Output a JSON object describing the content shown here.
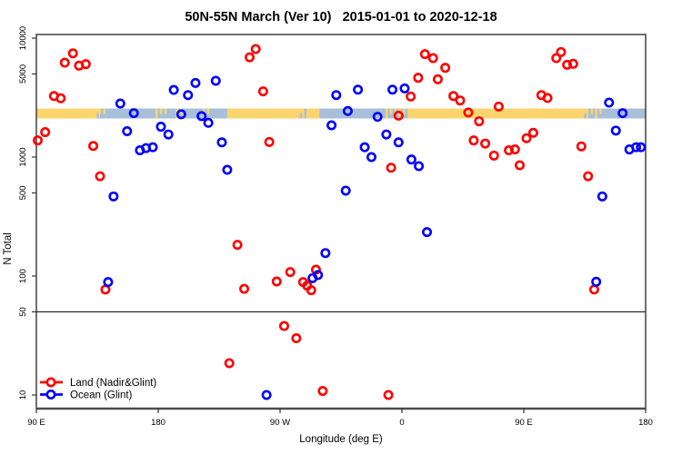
{
  "chart_data": {
    "type": "scatter",
    "title": "50N-55N March (Ver 10)   2015-01-01 to 2020-12-18",
    "xlabel": "Longitude (deg E)",
    "ylabel": "N Total",
    "x_axis": {
      "range": [
        90,
        540
      ],
      "ticks": [
        90,
        180,
        270,
        360,
        450,
        540
      ],
      "tick_labels": [
        "90 E",
        "180",
        "90 W",
        "0",
        "90 E",
        "180"
      ]
    },
    "y_axis": {
      "scale": "log10",
      "ticks": [
        10,
        50,
        100,
        500,
        1000,
        5000,
        10000
      ],
      "tick_labels": [
        "10",
        "50",
        "100",
        "500",
        "1000",
        "5000",
        "10000"
      ]
    },
    "reference_line_y": 50,
    "legend": [
      {
        "label": "Land (Nadir&Glint)",
        "color": "#FF0000"
      },
      {
        "label": "Ocean (Glint)",
        "color": "#0000FF"
      }
    ],
    "land_ocean_strip": {
      "description": "land/ocean mask band drawn across the plot near N=2300",
      "land_color": "#FBD46E",
      "ocean_color": "#A8BFD9",
      "band_value_range": [
        2100,
        2600
      ],
      "segments": [
        {
          "from": 90,
          "to": 137,
          "type": "land"
        },
        {
          "from": 137,
          "to": 231,
          "type": "ocean"
        },
        {
          "from": 231,
          "to": 299,
          "type": "land"
        },
        {
          "from": 299,
          "to": 363,
          "type": "ocean"
        },
        {
          "from": 363,
          "to": 499,
          "type": "land"
        },
        {
          "from": 499,
          "to": 540,
          "type": "ocean"
        }
      ],
      "mixed_zones": [
        {
          "from": 133,
          "to": 142
        },
        {
          "from": 178,
          "to": 185
        },
        {
          "from": 193,
          "to": 199
        },
        {
          "from": 213,
          "to": 218
        },
        {
          "from": 283,
          "to": 289
        },
        {
          "from": 348,
          "to": 363
        },
        {
          "from": 493,
          "to": 507
        }
      ]
    },
    "series": [
      {
        "name": "Land (Nadir&Glint)",
        "color": "#FF0000",
        "points": [
          [
            117,
            7450
          ],
          [
            111,
            6220
          ],
          [
            121.5,
            5870
          ],
          [
            126.5,
            6040
          ],
          [
            103,
            3260
          ],
          [
            108,
            3120
          ],
          [
            96.5,
            1620
          ],
          [
            91,
            1380
          ],
          [
            132,
            1240
          ],
          [
            137,
            690
          ],
          [
            252,
            8100
          ],
          [
            247.5,
            6900
          ],
          [
            257.5,
            3570
          ],
          [
            262,
            1340
          ],
          [
            377,
            7330
          ],
          [
            383,
            6790
          ],
          [
            392,
            5630
          ],
          [
            372,
            4640
          ],
          [
            386.5,
            4510
          ],
          [
            366.5,
            3230
          ],
          [
            398,
            3260
          ],
          [
            403,
            2990
          ],
          [
            409,
            2370
          ],
          [
            417,
            2000
          ],
          [
            357.5,
            2230
          ],
          [
            413,
            1380
          ],
          [
            421.5,
            1300
          ],
          [
            428,
            1030
          ],
          [
            352,
            814
          ],
          [
            431.5,
            2660
          ],
          [
            477.5,
            7640
          ],
          [
            474,
            6790
          ],
          [
            482,
            5970
          ],
          [
            486.5,
            6080
          ],
          [
            463,
            3320
          ],
          [
            467.5,
            3140
          ],
          [
            457,
            1600
          ],
          [
            452,
            1440
          ],
          [
            439,
            1140
          ],
          [
            443.5,
            1160
          ],
          [
            492.5,
            1230
          ],
          [
            447,
            854
          ],
          [
            497.5,
            690
          ],
          [
            238.5,
            183
          ],
          [
            243.5,
            78
          ],
          [
            267.5,
            90
          ],
          [
            277.5,
            108
          ],
          [
            287,
            89
          ],
          [
            290,
            83
          ],
          [
            293,
            76
          ],
          [
            296.5,
            113
          ],
          [
            273,
            38
          ],
          [
            282,
            30
          ],
          [
            232.5,
            18.5
          ],
          [
            301.5,
            10.8
          ],
          [
            350,
            10
          ],
          [
            502,
            77
          ],
          [
            141,
            77
          ]
        ]
      },
      {
        "name": "Ocean (Glint)",
        "color": "#0000FF",
        "points": [
          [
            191.5,
            3670
          ],
          [
            202,
            3320
          ],
          [
            152,
            2820
          ],
          [
            162,
            2340
          ],
          [
            197,
            2290
          ],
          [
            157,
            1650
          ],
          [
            182,
            1800
          ],
          [
            187.5,
            1550
          ],
          [
            166.5,
            1140
          ],
          [
            171,
            1190
          ],
          [
            176,
            1210
          ],
          [
            147,
            467
          ],
          [
            207.5,
            4200
          ],
          [
            222.5,
            4380
          ],
          [
            311.5,
            3320
          ],
          [
            212,
            2210
          ],
          [
            217,
            1940
          ],
          [
            308,
            1850
          ],
          [
            227,
            1330
          ],
          [
            231,
            782
          ],
          [
            318.5,
            522
          ],
          [
            327.5,
            3690
          ],
          [
            353,
            3690
          ],
          [
            362,
            3780
          ],
          [
            320,
            2440
          ],
          [
            342,
            2180
          ],
          [
            348.5,
            1550
          ],
          [
            357.5,
            1330
          ],
          [
            332.5,
            1210
          ],
          [
            337.5,
            1000
          ],
          [
            367,
            954
          ],
          [
            372.5,
            839
          ],
          [
            513,
            2870
          ],
          [
            523,
            2340
          ],
          [
            518,
            1670
          ],
          [
            528,
            1160
          ],
          [
            533,
            1210
          ],
          [
            536.5,
            1210
          ],
          [
            508,
            467
          ],
          [
            143,
            89
          ],
          [
            303.5,
            156
          ],
          [
            294,
            96
          ],
          [
            298,
            102
          ],
          [
            260,
            10
          ],
          [
            378.5,
            234
          ],
          [
            503.5,
            89.5
          ]
        ]
      }
    ]
  }
}
